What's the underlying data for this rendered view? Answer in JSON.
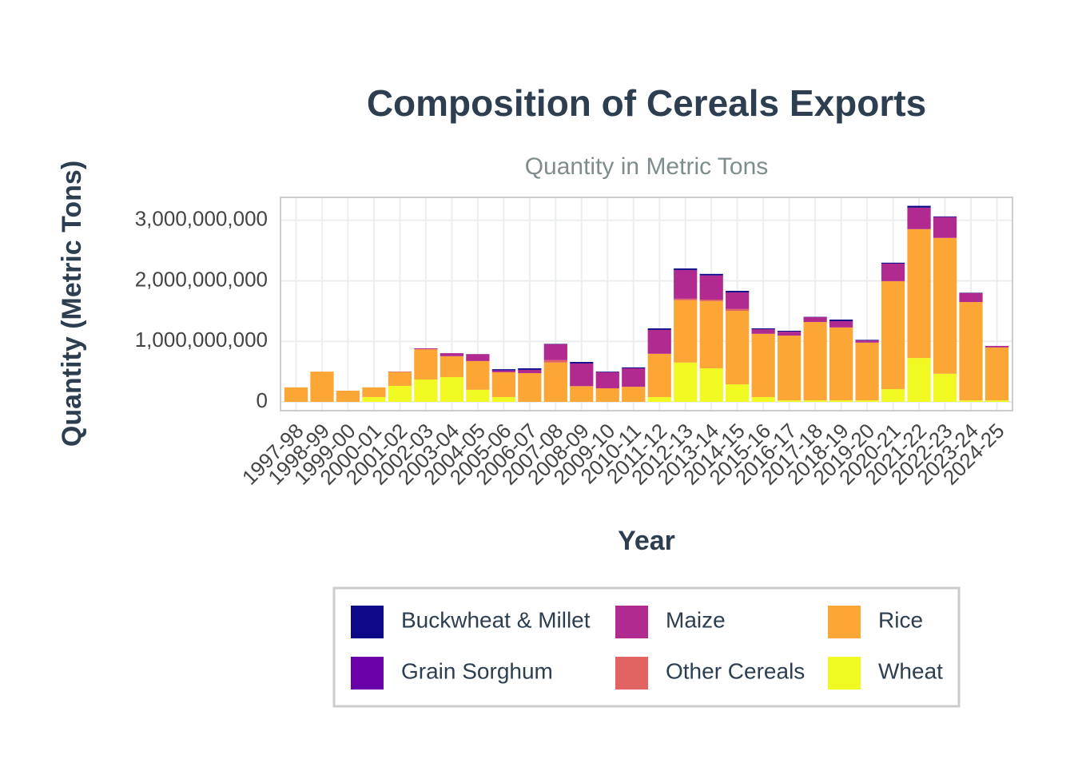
{
  "chart_data": {
    "type": "stacked_bar",
    "title": "Composition of Cereals Exports",
    "subtitle": "Quantity in Metric Tons",
    "x_label": "Year",
    "y_label": "Quantity (Metric Tons)",
    "categories": [
      "1997-98",
      "1998-99",
      "1999-00",
      "2000-01",
      "2001-02",
      "2002-03",
      "2003-04",
      "2004-05",
      "2005-06",
      "2006-07",
      "2007-08",
      "2008-09",
      "2009-10",
      "2010-11",
      "2011-12",
      "2012-13",
      "2013-14",
      "2014-15",
      "2015-16",
      "2016-17",
      "2017-18",
      "2018-19",
      "2019-20",
      "2020-21",
      "2021-22",
      "2022-23",
      "2023-24",
      "2024-25"
    ],
    "series": [
      {
        "name": "Buckwheat & Millet",
        "color": "#0d0887",
        "values": [
          0,
          0,
          0,
          0,
          0,
          0,
          0,
          0,
          15000000,
          25000000,
          5000000,
          25000000,
          10000000,
          15000000,
          25000000,
          25000000,
          25000000,
          25000000,
          15000000,
          15000000,
          5000000,
          25000000,
          10000000,
          15000000,
          30000000,
          10000000,
          5000000,
          0
        ]
      },
      {
        "name": "Grain Sorghum",
        "color": "#6a00a8",
        "values": [
          0,
          0,
          0,
          0,
          0,
          0,
          0,
          0,
          10000000,
          0,
          0,
          0,
          0,
          0,
          0,
          0,
          0,
          0,
          0,
          0,
          0,
          0,
          0,
          0,
          0,
          0,
          0,
          0
        ]
      },
      {
        "name": "Maize",
        "color": "#b12a90",
        "values": [
          0,
          0,
          0,
          0,
          5000000,
          15000000,
          50000000,
          115000000,
          25000000,
          55000000,
          265000000,
          375000000,
          265000000,
          305000000,
          395000000,
          475000000,
          400000000,
          275000000,
          75000000,
          65000000,
          80000000,
          105000000,
          35000000,
          290000000,
          355000000,
          345000000,
          150000000,
          25000000
        ]
      },
      {
        "name": "Other Cereals",
        "color": "#e16462",
        "values": [
          0,
          0,
          0,
          0,
          0,
          0,
          0,
          0,
          0,
          0,
          40000000,
          0,
          0,
          0,
          0,
          25000000,
          25000000,
          30000000,
          0,
          0,
          0,
          0,
          0,
          0,
          0,
          0,
          0,
          0
        ]
      },
      {
        "name": "Rice",
        "color": "#fca636",
        "values": [
          240000000,
          500000000,
          185000000,
          160000000,
          230000000,
          500000000,
          345000000,
          475000000,
          410000000,
          475000000,
          650000000,
          260000000,
          225000000,
          250000000,
          715000000,
          1030000000,
          1110000000,
          1215000000,
          1045000000,
          1070000000,
          1295000000,
          1205000000,
          955000000,
          1785000000,
          2130000000,
          2245000000,
          1625000000,
          875000000
        ]
      },
      {
        "name": "Wheat",
        "color": "#f0f921",
        "values": [
          0,
          0,
          0,
          80000000,
          265000000,
          370000000,
          410000000,
          200000000,
          80000000,
          0,
          0,
          0,
          0,
          0,
          80000000,
          650000000,
          555000000,
          290000000,
          80000000,
          25000000,
          25000000,
          25000000,
          25000000,
          210000000,
          725000000,
          465000000,
          25000000,
          25000000
        ]
      }
    ],
    "ylim": [
      -145000000,
      3380000000
    ],
    "yticks": [
      0,
      {
        "value": 1000000000,
        "label": "1,000,000,000"
      },
      {
        "value": 2000000000,
        "label": "2,000,000,000"
      },
      {
        "value": 3000000000,
        "label": "3,000,000,000"
      }
    ],
    "grid": true
  }
}
